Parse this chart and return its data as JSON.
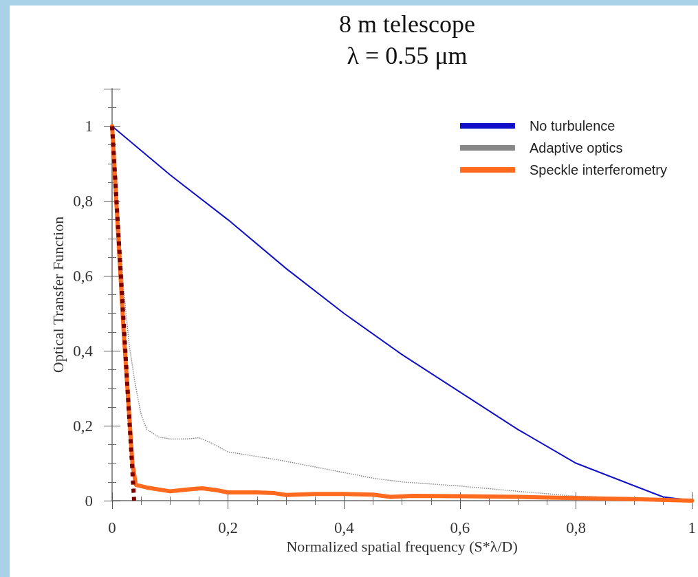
{
  "chart_data": {
    "type": "line",
    "title": "8 m telescope",
    "subtitle": "λ = 0.55 μm",
    "xlabel": "Normalized spatial frequency (S*λ/D)",
    "ylabel": "Optical Transfer Function",
    "xlim": [
      0,
      1
    ],
    "ylim": [
      0,
      1.1
    ],
    "xticks": [
      0,
      {
        "value": 0.2,
        "label": "0,2"
      },
      {
        "value": 0.4,
        "label": "0,4"
      },
      {
        "value": 0.6,
        "label": "0,6"
      },
      {
        "value": 0.8,
        "label": "0,8"
      },
      1
    ],
    "yticks": [
      0,
      {
        "value": 0.2,
        "label": "0,2"
      },
      {
        "value": 0.4,
        "label": "0,4"
      },
      {
        "value": 0.6,
        "label": "0,6"
      },
      {
        "value": 0.8,
        "label": "0,8"
      },
      1
    ],
    "grid": false,
    "legend": "top right",
    "marker": "none",
    "series": [
      {
        "name": "No turbulence",
        "color": "#1010c8",
        "line_style": "solid",
        "x": [
          0,
          0.1,
          0.2,
          0.3,
          0.4,
          0.5,
          0.6,
          0.7,
          0.8,
          0.9,
          0.95,
          1
        ],
        "values": [
          1,
          0.87,
          0.75,
          0.62,
          0.5,
          0.39,
          0.29,
          0.19,
          0.1,
          0.04,
          0.01,
          0
        ]
      },
      {
        "name": "Adaptive optics",
        "color": "#888888",
        "line_style": "dotted",
        "x": [
          0,
          0.005,
          0.01,
          0.02,
          0.03,
          0.04,
          0.05,
          0.06,
          0.08,
          0.1,
          0.13,
          0.15,
          0.17,
          0.2,
          0.25,
          0.3,
          0.35,
          0.4,
          0.45,
          0.5,
          0.6,
          0.7,
          0.8,
          0.9,
          1
        ],
        "values": [
          1,
          0.9,
          0.78,
          0.56,
          0.41,
          0.31,
          0.23,
          0.19,
          0.17,
          0.165,
          0.165,
          0.168,
          0.155,
          0.13,
          0.118,
          0.105,
          0.09,
          0.075,
          0.06,
          0.05,
          0.039,
          0.025,
          0.012,
          0.006,
          0
        ]
      },
      {
        "name": "Speckle interferometry",
        "color": "#ff6a1f",
        "line_style": "solid",
        "x": [
          0,
          0.02,
          0.035,
          0.041,
          0.06,
          0.1,
          0.13,
          0.155,
          0.18,
          0.2,
          0.25,
          0.28,
          0.3,
          0.35,
          0.4,
          0.45,
          0.48,
          0.52,
          0.6,
          0.7,
          0.8,
          0.9,
          1
        ],
        "values": [
          1,
          0.45,
          0.1,
          0.042,
          0.035,
          0.025,
          0.03,
          0.033,
          0.028,
          0.022,
          0.022,
          0.02,
          0.015,
          0.018,
          0.018,
          0.016,
          0.01,
          0.013,
          0.012,
          0.01,
          0.007,
          0.004,
          0
        ]
      },
      {
        "color": "#7a0000",
        "line_style": "dotted",
        "x": [
          0,
          0.038
        ],
        "values": [
          1,
          0
        ]
      }
    ]
  }
}
